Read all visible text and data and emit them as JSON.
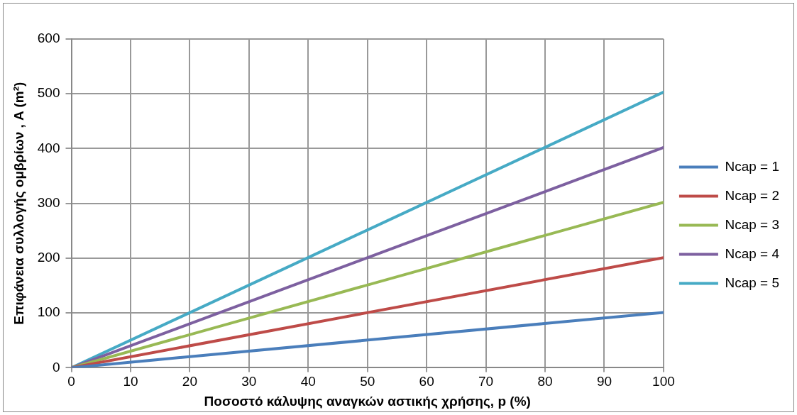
{
  "chart_data": {
    "type": "line",
    "xlabel": "Ποσοστό κάλυψης αναγκών αστικής χρήσης, p (%)",
    "ylabel": "Επιφάνεια συλλογής ομβρίων , A (m²)",
    "x": [
      0,
      100
    ],
    "series": [
      {
        "name": "Ncap = 1",
        "color": "#4a7ebb",
        "values": [
          0,
          101
        ]
      },
      {
        "name": "Ncap = 2",
        "color": "#be4b48",
        "values": [
          0,
          201
        ]
      },
      {
        "name": "Ncap = 3",
        "color": "#98b954",
        "values": [
          0,
          302
        ]
      },
      {
        "name": "Ncap = 4",
        "color": "#7d60a0",
        "values": [
          0,
          402
        ]
      },
      {
        "name": "Ncap = 5",
        "color": "#46aac5",
        "values": [
          0,
          503
        ]
      }
    ],
    "xlim": [
      0,
      100
    ],
    "xticks": [
      0,
      10,
      20,
      30,
      40,
      50,
      60,
      70,
      80,
      90,
      100
    ],
    "ylim": [
      0,
      600
    ],
    "yticks": [
      0,
      100,
      200,
      300,
      400,
      500,
      600
    ],
    "grid": true,
    "legend": "right",
    "marker": "none",
    "line_style": "solid"
  }
}
